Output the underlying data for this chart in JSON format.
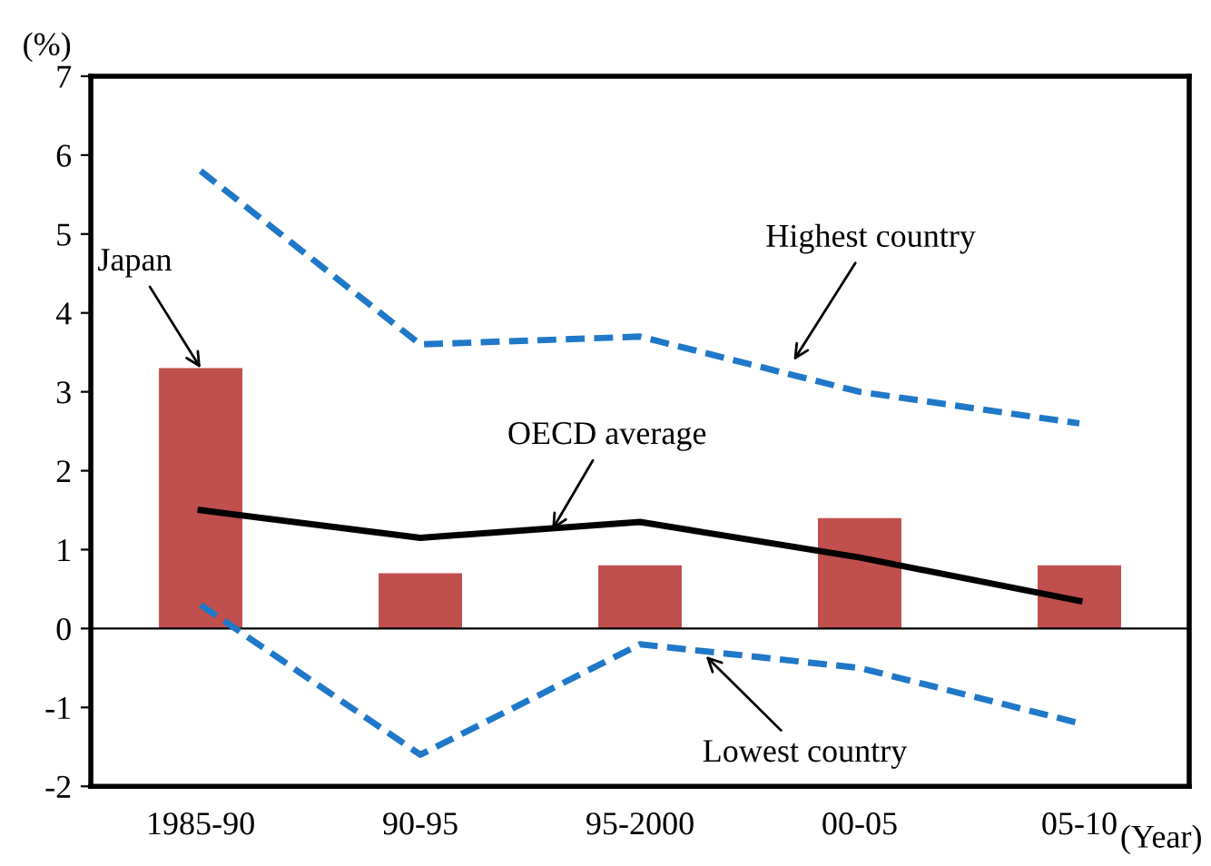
{
  "chart_data": {
    "type": "bar",
    "ylabel": "(%)",
    "xlabel": "(Year)",
    "categories": [
      "1985-90",
      "90-95",
      "95-2000",
      "00-05",
      "05-10"
    ],
    "series": [
      {
        "color": "#c0504d",
        "values": [
          3.3,
          0.7,
          0.8,
          1.4,
          0.8
        ]
      },
      {
        "type": "line",
        "color": "#000000",
        "line_style": "solid",
        "values": [
          1.5,
          1.15,
          1.35,
          0.9,
          0.35
        ]
      },
      {
        "type": "line",
        "color": "#1f78c8",
        "line_style": "dashed",
        "values": [
          5.8,
          3.6,
          3.7,
          3.0,
          2.6
        ]
      },
      {
        "type": "line",
        "color": "#1f78c8",
        "line_style": "dashed",
        "values": [
          0.3,
          -1.6,
          -0.2,
          -0.5,
          -1.2
        ]
      }
    ],
    "annotations": [
      {
        "text": "Japan",
        "x": "1985-90",
        "y": 3.3
      },
      "Highest country",
      {
        "text": "OECD average",
        "y": 1.25
      },
      {
        "text": "Lowest country",
        "y": -0.35
      }
    ],
    "ref_lines": [
      {
        "axis": "y",
        "value": 0,
        "color": "#000000"
      }
    ],
    "ylim": [
      -2,
      7
    ],
    "yticks": [
      -2,
      -1,
      0,
      1,
      2,
      3,
      4,
      5,
      6,
      7
    ],
    "grid": false,
    "legend": false,
    "marker": "none"
  }
}
